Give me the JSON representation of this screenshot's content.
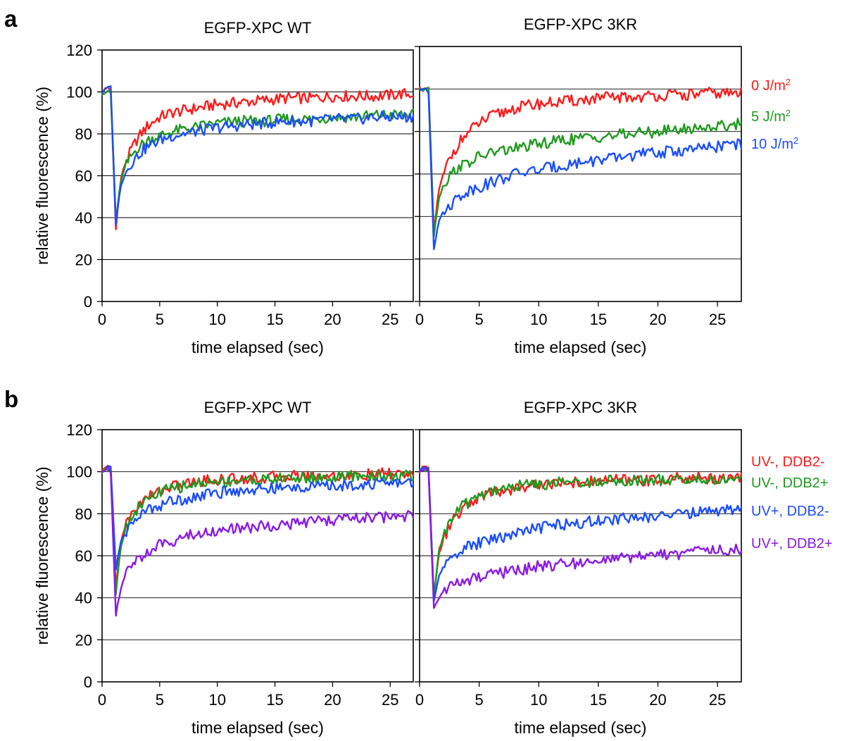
{
  "figure": {
    "panel_a_letter": "a",
    "panel_b_letter": "b"
  },
  "chart_data": [
    {
      "type": "line",
      "panel": "a",
      "title": "EGFP-XPC WT",
      "xlabel": "time elapsed (sec)",
      "ylabel": "relative fluorescence (%)",
      "xlim": [
        0,
        27
      ],
      "ylim": [
        0,
        120
      ],
      "xticks": [
        0,
        5,
        10,
        15,
        20,
        25
      ],
      "yticks": [
        0,
        20,
        40,
        60,
        80,
        100,
        120
      ],
      "grid": "horizontal",
      "series": [
        {
          "name": "0 J/m2",
          "color": "#ff1a1a",
          "x": [
            0,
            0.5,
            1.0,
            1.2,
            1.6,
            2.0,
            2.5,
            3,
            3.5,
            4,
            5,
            6,
            7,
            8,
            9,
            10,
            12,
            14,
            16,
            18,
            20,
            22,
            24,
            26,
            27
          ],
          "y": [
            100,
            102,
            99,
            35,
            58,
            66,
            72,
            77,
            81,
            84,
            88,
            90,
            91,
            92,
            93,
            94,
            95,
            96,
            97,
            97,
            98,
            98,
            98,
            99,
            99
          ]
        },
        {
          "name": "5 J/m2",
          "color": "#1e9a1e",
          "x": [
            0,
            0.5,
            1.0,
            1.2,
            1.6,
            2.0,
            2.5,
            3,
            3.5,
            4,
            5,
            6,
            7,
            8,
            9,
            10,
            12,
            14,
            16,
            18,
            20,
            22,
            24,
            26,
            27
          ],
          "y": [
            100,
            101,
            99,
            38,
            57,
            64,
            69,
            73,
            75,
            77,
            79,
            81,
            82,
            83,
            84,
            85,
            86,
            86,
            87,
            87,
            88,
            88,
            89,
            89,
            89
          ]
        },
        {
          "name": "10 J/m2",
          "color": "#1a4dff",
          "x": [
            0,
            0.5,
            1.0,
            1.2,
            1.6,
            2.0,
            2.5,
            3,
            3.5,
            4,
            5,
            6,
            7,
            8,
            9,
            10,
            12,
            14,
            16,
            18,
            20,
            22,
            24,
            26,
            27
          ],
          "y": [
            100,
            103,
            100,
            37,
            55,
            61,
            66,
            69,
            72,
            74,
            77,
            79,
            80,
            81,
            82,
            83,
            84,
            85,
            86,
            86,
            87,
            87,
            88,
            88,
            88
          ]
        }
      ]
    },
    {
      "type": "line",
      "panel": "a",
      "title": "EGFP-XPC 3KR",
      "xlabel": "time elapsed (sec)",
      "ylabel": "",
      "xlim": [
        0,
        27
      ],
      "ylim": [
        0,
        120
      ],
      "xticks": [
        0,
        5,
        10,
        15,
        20,
        25
      ],
      "yticks": [
        0,
        20,
        40,
        60,
        80,
        100,
        120
      ],
      "grid": "horizontal",
      "legend_position": "right",
      "series": [
        {
          "name": "0 J/m2",
          "color": "#ff1a1a",
          "x": [
            0,
            0.5,
            1.0,
            1.2,
            1.6,
            2.0,
            2.5,
            3,
            3.5,
            4,
            5,
            6,
            7,
            8,
            9,
            10,
            12,
            14,
            16,
            18,
            20,
            22,
            24,
            26,
            27
          ],
          "y": [
            100,
            101,
            99,
            33,
            52,
            60,
            67,
            72,
            76,
            79,
            84,
            87,
            89,
            91,
            92,
            93,
            94,
            95,
            96,
            96,
            97,
            97,
            98,
            98,
            98
          ]
        },
        {
          "name": "5 J/m2",
          "color": "#1e9a1e",
          "x": [
            0,
            0.5,
            1.0,
            1.2,
            1.6,
            2.0,
            2.5,
            3,
            3.5,
            4,
            5,
            6,
            7,
            8,
            9,
            10,
            12,
            14,
            16,
            18,
            20,
            22,
            24,
            26,
            27
          ],
          "y": [
            100,
            100,
            98,
            31,
            48,
            55,
            59,
            62,
            64,
            65,
            68,
            70,
            71,
            72,
            73,
            74,
            76,
            77,
            78,
            79,
            80,
            81,
            82,
            83,
            84
          ]
        },
        {
          "name": "10 J/m2",
          "color": "#1a4dff",
          "x": [
            0,
            0.5,
            1.0,
            1.2,
            1.6,
            2.0,
            2.5,
            3,
            3.5,
            4,
            5,
            6,
            7,
            8,
            9,
            10,
            12,
            14,
            16,
            18,
            20,
            22,
            24,
            26,
            27
          ],
          "y": [
            100,
            99,
            97,
            25,
            38,
            42,
            45,
            48,
            50,
            52,
            54,
            56,
            58,
            60,
            61,
            62,
            64,
            66,
            67,
            69,
            70,
            71,
            72,
            74,
            74
          ]
        }
      ]
    },
    {
      "type": "line",
      "panel": "b",
      "title": "EGFP-XPC WT",
      "xlabel": "time elapsed (sec)",
      "ylabel": "relative fluorescence (%)",
      "xlim": [
        0,
        27
      ],
      "ylim": [
        0,
        120
      ],
      "xticks": [
        0,
        5,
        10,
        15,
        20,
        25
      ],
      "yticks": [
        0,
        20,
        40,
        60,
        80,
        100,
        120
      ],
      "grid": "horizontal",
      "series": [
        {
          "name": "UV-, DDB2-",
          "color": "#ff1a1a",
          "x": [
            0,
            0.5,
            1.0,
            1.2,
            1.6,
            2.0,
            2.5,
            3,
            3.5,
            4,
            5,
            6,
            7,
            8,
            9,
            10,
            12,
            14,
            16,
            18,
            20,
            22,
            24,
            26,
            27
          ],
          "y": [
            100,
            102,
            100,
            45,
            66,
            74,
            79,
            83,
            86,
            88,
            91,
            93,
            94,
            95,
            96,
            96,
            97,
            97,
            98,
            98,
            98,
            98,
            99,
            99,
            99
          ]
        },
        {
          "name": "UV-, DDB2+",
          "color": "#1e9a1e",
          "x": [
            0,
            0.5,
            1.0,
            1.2,
            1.6,
            2.0,
            2.5,
            3,
            3.5,
            4,
            5,
            6,
            7,
            8,
            9,
            10,
            12,
            14,
            16,
            18,
            20,
            22,
            24,
            26,
            27
          ],
          "y": [
            100,
            101,
            100,
            42,
            64,
            72,
            78,
            82,
            85,
            87,
            90,
            92,
            93,
            94,
            95,
            95,
            96,
            96,
            97,
            97,
            97,
            98,
            98,
            98,
            98
          ]
        },
        {
          "name": "UV+, DDB2-",
          "color": "#1a4dff",
          "x": [
            0,
            0.5,
            1.0,
            1.2,
            1.6,
            2.0,
            2.5,
            3,
            3.5,
            4,
            5,
            6,
            7,
            8,
            9,
            10,
            12,
            14,
            16,
            18,
            20,
            22,
            24,
            26,
            27
          ],
          "y": [
            100,
            102,
            100,
            54,
            66,
            71,
            75,
            78,
            80,
            82,
            84,
            86,
            87,
            88,
            89,
            90,
            91,
            92,
            92,
            93,
            93,
            94,
            94,
            95,
            95
          ]
        },
        {
          "name": "UV+, DDB2+",
          "color": "#8a1ae6",
          "x": [
            0,
            0.5,
            1.0,
            1.2,
            1.6,
            2.0,
            2.5,
            3,
            3.5,
            4,
            5,
            6,
            7,
            8,
            9,
            10,
            12,
            14,
            16,
            18,
            20,
            22,
            24,
            26,
            27
          ],
          "y": [
            100,
            101,
            100,
            32,
            44,
            50,
            55,
            58,
            60,
            62,
            65,
            67,
            69,
            70,
            71,
            72,
            73,
            74,
            75,
            76,
            77,
            78,
            78,
            79,
            79
          ]
        }
      ]
    },
    {
      "type": "line",
      "panel": "b",
      "title": "EGFP-XPC 3KR",
      "xlabel": "time elapsed (sec)",
      "ylabel": "",
      "xlim": [
        0,
        27
      ],
      "ylim": [
        0,
        120
      ],
      "xticks": [
        0,
        5,
        10,
        15,
        20,
        25
      ],
      "yticks": [
        0,
        20,
        40,
        60,
        80,
        100,
        120
      ],
      "grid": "horizontal",
      "legend_position": "right",
      "series": [
        {
          "name": "UV-, DDB2-",
          "color": "#ff1a1a",
          "x": [
            0,
            0.5,
            1.0,
            1.2,
            1.6,
            2.0,
            2.5,
            3,
            3.5,
            4,
            5,
            6,
            7,
            8,
            9,
            10,
            12,
            14,
            16,
            18,
            20,
            22,
            24,
            26,
            27
          ],
          "y": [
            100,
            102,
            100,
            40,
            60,
            68,
            74,
            78,
            81,
            84,
            88,
            90,
            91,
            92,
            93,
            94,
            95,
            95,
            96,
            96,
            96,
            97,
            97,
            97,
            97
          ]
        },
        {
          "name": "UV-, DDB2+",
          "color": "#1e9a1e",
          "x": [
            0,
            0.5,
            1.0,
            1.2,
            1.6,
            2.0,
            2.5,
            3,
            3.5,
            4,
            5,
            6,
            7,
            8,
            9,
            10,
            12,
            14,
            16,
            18,
            20,
            22,
            24,
            26,
            27
          ],
          "y": [
            100,
            101,
            99,
            41,
            62,
            70,
            76,
            80,
            83,
            85,
            89,
            91,
            92,
            93,
            94,
            94,
            95,
            95,
            96,
            96,
            96,
            96,
            96,
            96,
            96
          ]
        },
        {
          "name": "UV+, DDB2-",
          "color": "#1a4dff",
          "x": [
            0,
            0.5,
            1.0,
            1.2,
            1.6,
            2.0,
            2.5,
            3,
            3.5,
            4,
            5,
            6,
            7,
            8,
            9,
            10,
            12,
            14,
            16,
            18,
            20,
            22,
            24,
            26,
            27
          ],
          "y": [
            100,
            103,
            100,
            38,
            50,
            55,
            58,
            61,
            63,
            64,
            66,
            68,
            69,
            71,
            72,
            73,
            75,
            76,
            77,
            78,
            79,
            80,
            81,
            82,
            82
          ]
        },
        {
          "name": "UV+, DDB2+",
          "color": "#8a1ae6",
          "x": [
            0,
            0.5,
            1.0,
            1.2,
            1.6,
            2.0,
            2.5,
            3,
            3.5,
            4,
            5,
            6,
            7,
            8,
            9,
            10,
            12,
            14,
            16,
            18,
            20,
            22,
            24,
            26,
            27
          ],
          "y": [
            100,
            101,
            99,
            35,
            40,
            43,
            45,
            46,
            47,
            48,
            50,
            51,
            52,
            53,
            54,
            55,
            56,
            57,
            58,
            59,
            60,
            61,
            62,
            63,
            63
          ]
        }
      ]
    }
  ]
}
